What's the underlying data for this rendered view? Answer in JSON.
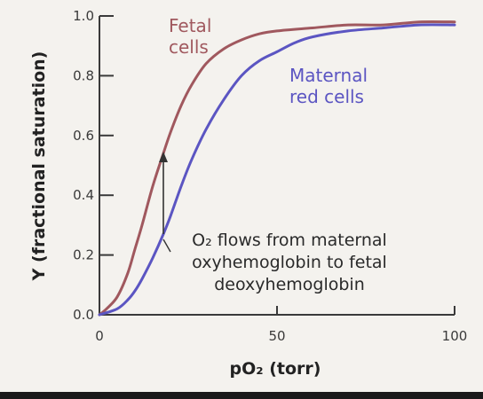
{
  "chart_data": {
    "type": "line",
    "xlabel": "pO₂ (torr)",
    "ylabel": "Y (fractional saturation)",
    "xlim": [
      0,
      100
    ],
    "ylim": [
      0,
      1.0
    ],
    "x_ticks": [
      0,
      50,
      100
    ],
    "x_tick_labels": [
      "0",
      "50",
      "100"
    ],
    "y_ticks": [
      0.0,
      0.2,
      0.4,
      0.6,
      0.8,
      1.0
    ],
    "y_tick_labels": [
      "0.0",
      "0.2",
      "0.4",
      "0.6",
      "0.8",
      "1.0"
    ],
    "grid": false,
    "legend": "none",
    "series": [
      {
        "name": "Fetal cells",
        "label_lines": [
          "Fetal",
          "cells"
        ],
        "color": "#a0585e",
        "x": [
          0,
          2,
          5,
          8,
          10,
          12,
          15,
          18,
          20,
          23,
          26,
          30,
          35,
          40,
          45,
          50,
          60,
          70,
          80,
          90,
          100
        ],
        "y": [
          0,
          0.02,
          0.06,
          0.14,
          0.22,
          0.3,
          0.43,
          0.54,
          0.61,
          0.7,
          0.77,
          0.84,
          0.89,
          0.92,
          0.94,
          0.95,
          0.96,
          0.97,
          0.97,
          0.98,
          0.98
        ]
      },
      {
        "name": "Maternal red cells",
        "label_lines": [
          "Maternal",
          "red cells"
        ],
        "color": "#5b55c2",
        "x": [
          0,
          5,
          8,
          10,
          12,
          15,
          18,
          20,
          23,
          26,
          30,
          35,
          40,
          45,
          50,
          55,
          60,
          70,
          80,
          90,
          100
        ],
        "y": [
          0,
          0.02,
          0.05,
          0.08,
          0.12,
          0.19,
          0.27,
          0.33,
          0.43,
          0.52,
          0.62,
          0.72,
          0.8,
          0.85,
          0.88,
          0.91,
          0.93,
          0.95,
          0.96,
          0.97,
          0.97
        ]
      }
    ],
    "annotation": {
      "lines": [
        "O₂ flows from maternal",
        "oxyhemoglobin to fetal",
        "deoxyhemoglobin"
      ],
      "arrow_x": 18,
      "arrow_from_y": 0.27,
      "arrow_to_y": 0.54
    }
  }
}
